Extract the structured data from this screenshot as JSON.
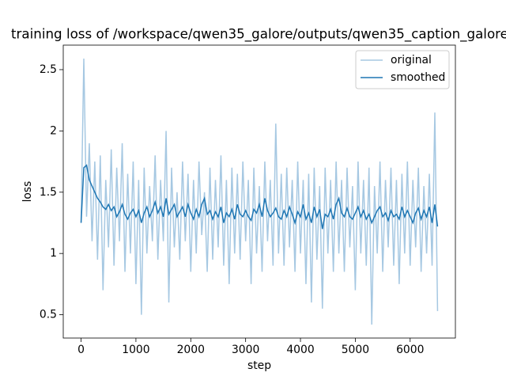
{
  "chart_data": {
    "type": "line",
    "title": "training loss of /workspace/qwen35_galore/outputs/qwen35_caption_galore",
    "xlabel": "step",
    "ylabel": "loss",
    "x": [
      0,
      50,
      100,
      150,
      200,
      250,
      300,
      350,
      400,
      450,
      500,
      550,
      600,
      650,
      700,
      750,
      800,
      850,
      900,
      950,
      1000,
      1050,
      1100,
      1150,
      1200,
      1250,
      1300,
      1350,
      1400,
      1450,
      1500,
      1550,
      1600,
      1650,
      1700,
      1750,
      1800,
      1850,
      1900,
      1950,
      2000,
      2050,
      2100,
      2150,
      2200,
      2250,
      2300,
      2350,
      2400,
      2450,
      2500,
      2550,
      2600,
      2650,
      2700,
      2750,
      2800,
      2850,
      2900,
      2950,
      3000,
      3050,
      3100,
      3150,
      3200,
      3250,
      3300,
      3350,
      3400,
      3450,
      3500,
      3550,
      3600,
      3650,
      3700,
      3750,
      3800,
      3850,
      3900,
      3950,
      4000,
      4050,
      4100,
      4150,
      4200,
      4250,
      4300,
      4350,
      4400,
      4450,
      4500,
      4550,
      4600,
      4650,
      4700,
      4750,
      4800,
      4850,
      4900,
      4950,
      5000,
      5050,
      5100,
      5150,
      5200,
      5250,
      5300,
      5350,
      5400,
      5450,
      5500,
      5550,
      5600,
      5650,
      5700,
      5750,
      5800,
      5850,
      5900,
      5950,
      6000,
      6050,
      6100,
      6150,
      6200,
      6250,
      6300,
      6350,
      6400,
      6450,
      6500
    ],
    "series": [
      {
        "name": "original",
        "color": "#a6c8e2",
        "values": [
          1.25,
          2.59,
          1.3,
          1.9,
          1.1,
          1.75,
          0.95,
          1.8,
          0.7,
          1.6,
          1.05,
          1.85,
          0.9,
          1.7,
          1.1,
          1.9,
          0.85,
          1.65,
          1.0,
          1.75,
          0.75,
          1.6,
          0.5,
          1.7,
          1.0,
          1.55,
          1.1,
          1.8,
          0.95,
          1.6,
          1.1,
          2.0,
          0.6,
          1.7,
          1.05,
          1.5,
          0.95,
          1.75,
          1.1,
          1.65,
          0.85,
          1.6,
          1.0,
          1.75,
          1.15,
          1.5,
          0.85,
          1.7,
          0.95,
          1.6,
          1.05,
          1.8,
          0.9,
          1.6,
          0.75,
          1.7,
          1.0,
          1.65,
          0.95,
          1.75,
          1.1,
          1.6,
          0.75,
          1.7,
          1.0,
          1.55,
          0.85,
          1.75,
          1.1,
          1.6,
          0.9,
          2.06,
          1.0,
          1.65,
          0.9,
          1.7,
          1.05,
          1.6,
          0.85,
          1.75,
          1.0,
          1.6,
          0.75,
          1.65,
          0.6,
          1.7,
          0.95,
          1.55,
          0.55,
          1.7,
          1.0,
          1.6,
          0.85,
          1.75,
          1.0,
          1.6,
          0.85,
          1.7,
          1.05,
          1.55,
          0.7,
          1.75,
          1.0,
          1.6,
          0.9,
          1.7,
          0.42,
          1.55,
          1.0,
          1.75,
          0.85,
          1.6,
          1.05,
          1.7,
          0.9,
          1.6,
          0.75,
          1.65,
          1.0,
          1.75,
          0.9,
          1.6,
          1.05,
          1.7,
          0.85,
          1.55,
          1.0,
          1.65,
          0.9,
          2.15,
          0.53
        ]
      },
      {
        "name": "smoothed",
        "color": "#1f77b4",
        "values": [
          1.25,
          1.7,
          1.72,
          1.6,
          1.55,
          1.5,
          1.45,
          1.42,
          1.38,
          1.36,
          1.4,
          1.35,
          1.38,
          1.3,
          1.34,
          1.4,
          1.32,
          1.28,
          1.33,
          1.36,
          1.3,
          1.35,
          1.25,
          1.33,
          1.38,
          1.3,
          1.35,
          1.42,
          1.33,
          1.38,
          1.3,
          1.45,
          1.32,
          1.36,
          1.4,
          1.3,
          1.34,
          1.38,
          1.3,
          1.4,
          1.33,
          1.28,
          1.36,
          1.3,
          1.4,
          1.45,
          1.32,
          1.35,
          1.28,
          1.34,
          1.3,
          1.38,
          1.25,
          1.33,
          1.3,
          1.36,
          1.28,
          1.4,
          1.32,
          1.3,
          1.35,
          1.3,
          1.27,
          1.36,
          1.33,
          1.4,
          1.3,
          1.45,
          1.35,
          1.3,
          1.33,
          1.37,
          1.3,
          1.28,
          1.35,
          1.3,
          1.38,
          1.32,
          1.25,
          1.34,
          1.3,
          1.4,
          1.28,
          1.33,
          1.25,
          1.38,
          1.3,
          1.36,
          1.2,
          1.32,
          1.3,
          1.36,
          1.28,
          1.4,
          1.45,
          1.33,
          1.3,
          1.37,
          1.3,
          1.28,
          1.33,
          1.38,
          1.3,
          1.35,
          1.28,
          1.32,
          1.25,
          1.3,
          1.35,
          1.38,
          1.3,
          1.33,
          1.27,
          1.35,
          1.3,
          1.32,
          1.28,
          1.38,
          1.3,
          1.35,
          1.3,
          1.25,
          1.33,
          1.37,
          1.28,
          1.35,
          1.3,
          1.38,
          1.25,
          1.4,
          1.22
        ]
      }
    ],
    "xlim": [
      -325,
      6825
    ],
    "xticks": [
      0,
      1000,
      2000,
      3000,
      4000,
      5000,
      6000
    ],
    "ylim": [
      0.31,
      2.7
    ],
    "yticks": [
      0.5,
      1.0,
      1.5,
      2.0,
      2.5
    ],
    "legend": "upper right"
  }
}
